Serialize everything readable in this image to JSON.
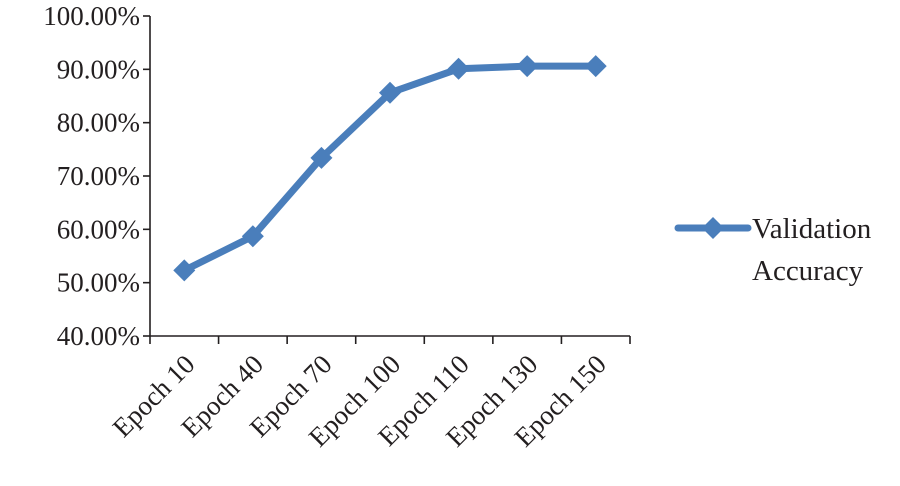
{
  "chart_data": {
    "type": "line",
    "categories": [
      "Epoch 10",
      "Epoch 40",
      "Epoch 70",
      "Epoch 100",
      "Epoch 110",
      "Epoch 130",
      "Epoch 150"
    ],
    "series": [
      {
        "name": "Validation Accuracy",
        "legend_lines": [
          "Validation",
          "Accuracy"
        ],
        "values": [
          0.523,
          0.587,
          0.734,
          0.856,
          0.901,
          0.906,
          0.906
        ],
        "color": "#4a7ebb"
      }
    ],
    "ylim": [
      0.4,
      1.0
    ],
    "ytick_values": [
      0.4,
      0.5,
      0.6,
      0.7,
      0.8,
      0.9,
      1.0
    ],
    "ytick_labels": [
      "40.00%",
      "50.00%",
      "60.00%",
      "70.00%",
      "80.00%",
      "90.00%",
      "100.00%"
    ],
    "grid": false,
    "legend_position": "right",
    "marker": "diamond",
    "axis_color": "#231f20"
  }
}
